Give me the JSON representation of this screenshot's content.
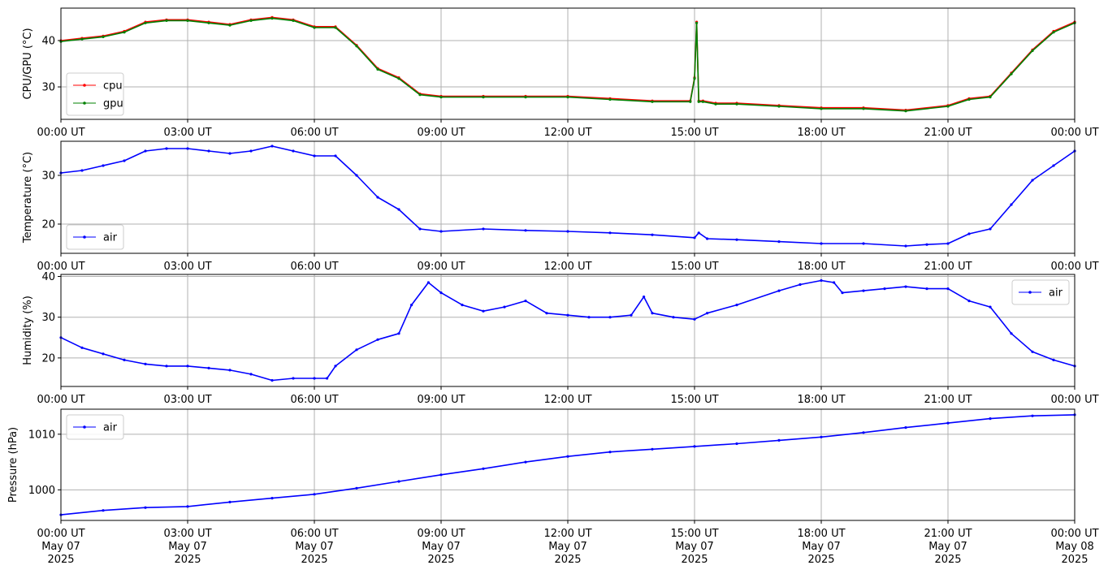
{
  "chart_data": [
    {
      "type": "line",
      "ylabel": "CPU/GPU (°C)",
      "ylim": [
        23,
        47
      ],
      "yticks": [
        30,
        40
      ],
      "xticks": [
        "00:00 UT",
        "03:00 UT",
        "06:00 UT",
        "09:00 UT",
        "12:00 UT",
        "15:00 UT",
        "18:00 UT",
        "21:00 UT",
        "00:00 UT"
      ],
      "xlim_hours": [
        0,
        24
      ],
      "grid": true,
      "legend": "lower-left",
      "series": [
        {
          "name": "cpu",
          "color": "#ff0000",
          "x": [
            0,
            0.5,
            1,
            1.5,
            2,
            2.5,
            3,
            3.5,
            4,
            4.5,
            5,
            5.5,
            6,
            6.5,
            7,
            7.5,
            8,
            8.5,
            9,
            10,
            11,
            12,
            13,
            14,
            14.9,
            15.0,
            15.05,
            15.1,
            15.2,
            15.5,
            16,
            17,
            18,
            19,
            20,
            21,
            21.5,
            22,
            22.5,
            23,
            23.5,
            24
          ],
          "y": [
            40,
            40.5,
            41,
            42,
            44,
            44.5,
            44.5,
            44,
            43.5,
            44.5,
            45,
            44.5,
            43,
            43,
            39,
            34,
            32,
            28.5,
            28,
            28,
            28,
            28,
            27.5,
            27,
            27,
            32,
            44,
            27,
            27,
            26.5,
            26.5,
            26,
            25.5,
            25.5,
            25,
            26,
            27.5,
            28,
            33,
            38,
            42,
            44
          ]
        },
        {
          "name": "gpu",
          "color": "#008000",
          "x": [
            0,
            0.5,
            1,
            1.5,
            2,
            2.5,
            3,
            3.5,
            4,
            4.5,
            5,
            5.5,
            6,
            6.5,
            7,
            7.5,
            8,
            8.5,
            9,
            10,
            11,
            12,
            13,
            14,
            14.9,
            15.0,
            15.05,
            15.1,
            15.2,
            15.5,
            16,
            17,
            18,
            19,
            20,
            21,
            21.5,
            22,
            22.5,
            23,
            23.5,
            24
          ],
          "y": [
            39.8,
            40.3,
            40.8,
            41.8,
            43.8,
            44.3,
            44.3,
            43.8,
            43.3,
            44.3,
            44.8,
            44.3,
            42.8,
            42.8,
            38.8,
            33.8,
            31.8,
            28.3,
            27.8,
            27.8,
            27.8,
            27.8,
            27.3,
            26.8,
            26.8,
            31.8,
            43.8,
            26.8,
            26.8,
            26.3,
            26.3,
            25.8,
            25.3,
            25.3,
            24.8,
            25.8,
            27.3,
            27.8,
            32.8,
            37.8,
            41.8,
            43.8
          ]
        }
      ]
    },
    {
      "type": "line",
      "ylabel": "Temperature (°C)",
      "ylim": [
        14,
        37
      ],
      "yticks": [
        20,
        30
      ],
      "xticks": [
        "00:00 UT",
        "03:00 UT",
        "06:00 UT",
        "09:00 UT",
        "12:00 UT",
        "15:00 UT",
        "18:00 UT",
        "21:00 UT",
        "00:00 UT"
      ],
      "xlim_hours": [
        0,
        24
      ],
      "grid": true,
      "legend": "lower-left",
      "series": [
        {
          "name": "air",
          "color": "#0000ff",
          "x": [
            0,
            0.5,
            1,
            1.5,
            2,
            2.5,
            3,
            3.5,
            4,
            4.5,
            5,
            5.5,
            6,
            6.5,
            7,
            7.5,
            8,
            8.5,
            9,
            10,
            11,
            12,
            13,
            14,
            15,
            15.1,
            15.3,
            16,
            17,
            18,
            19,
            20,
            20.5,
            21,
            21.5,
            22,
            22.5,
            23,
            23.5,
            24
          ],
          "y": [
            30.5,
            31,
            32,
            33,
            35,
            35.5,
            35.5,
            35,
            34.5,
            35,
            36,
            35,
            34,
            34,
            30,
            25.5,
            23,
            19,
            18.5,
            19,
            18.7,
            18.5,
            18.2,
            17.8,
            17.2,
            18.2,
            17,
            16.8,
            16.4,
            16,
            16,
            15.5,
            15.8,
            16,
            18,
            19,
            24,
            29,
            32,
            35
          ]
        }
      ]
    },
    {
      "type": "line",
      "ylabel": "Humidity (%)",
      "ylim": [
        13,
        40.5
      ],
      "yticks": [
        20,
        30,
        40
      ],
      "xticks": [
        "00:00 UT",
        "03:00 UT",
        "06:00 UT",
        "09:00 UT",
        "12:00 UT",
        "15:00 UT",
        "18:00 UT",
        "21:00 UT",
        "00:00 UT"
      ],
      "xlim_hours": [
        0,
        24
      ],
      "grid": true,
      "legend": "upper-right",
      "series": [
        {
          "name": "air",
          "color": "#0000ff",
          "x": [
            0,
            0.5,
            1,
            1.5,
            2,
            2.5,
            3,
            3.5,
            4,
            4.5,
            5,
            5.5,
            6,
            6.3,
            6.5,
            7,
            7.5,
            8,
            8.3,
            8.7,
            9,
            9.5,
            10,
            10.5,
            11,
            11.5,
            12,
            12.5,
            13,
            13.5,
            13.8,
            14,
            14.5,
            15,
            15.3,
            16,
            17,
            17.5,
            18,
            18.3,
            18.5,
            19,
            19.5,
            20,
            20.5,
            21,
            21.5,
            22,
            22.5,
            23,
            23.5,
            24
          ],
          "y": [
            25,
            22.5,
            21,
            19.5,
            18.5,
            18,
            18,
            17.5,
            17,
            16,
            14.5,
            15,
            15,
            15,
            18,
            22,
            24.5,
            26,
            33,
            38.5,
            36,
            33,
            31.5,
            32.5,
            34,
            31,
            30.5,
            30,
            30,
            30.5,
            35,
            31,
            30,
            29.5,
            31,
            33,
            36.5,
            38,
            39,
            38.5,
            36,
            36.5,
            37,
            37.5,
            37,
            37,
            34,
            32.5,
            26,
            21.5,
            19.5,
            18
          ]
        }
      ]
    },
    {
      "type": "line",
      "ylabel": "Pressure (hPa)",
      "ylim": [
        994.5,
        1014.5
      ],
      "yticks": [
        1000,
        1010
      ],
      "xticks": [
        "00:00 UT\nMay 07\n2025",
        "03:00 UT\nMay 07\n2025",
        "06:00 UT\nMay 07\n2025",
        "09:00 UT\nMay 07\n2025",
        "12:00 UT\nMay 07\n2025",
        "15:00 UT\nMay 07\n2025",
        "18:00 UT\nMay 07\n2025",
        "21:00 UT\nMay 07\n2025",
        "00:00 UT\nMay 08\n2025"
      ],
      "xlim_hours": [
        0,
        24
      ],
      "grid": true,
      "legend": "upper-left",
      "series": [
        {
          "name": "air",
          "color": "#0000ff",
          "x": [
            0,
            1,
            2,
            3,
            4,
            5,
            6,
            7,
            8,
            9,
            10,
            11,
            12,
            13,
            14,
            15,
            16,
            17,
            18,
            19,
            20,
            21,
            22,
            23,
            24
          ],
          "y": [
            995.5,
            996.3,
            996.8,
            997,
            997.8,
            998.5,
            999.2,
            1000.3,
            1001.5,
            1002.7,
            1003.8,
            1005,
            1006,
            1006.8,
            1007.3,
            1007.8,
            1008.3,
            1008.9,
            1009.5,
            1010.3,
            1011.2,
            1012,
            1012.8,
            1013.3,
            1013.5
          ]
        }
      ]
    }
  ]
}
